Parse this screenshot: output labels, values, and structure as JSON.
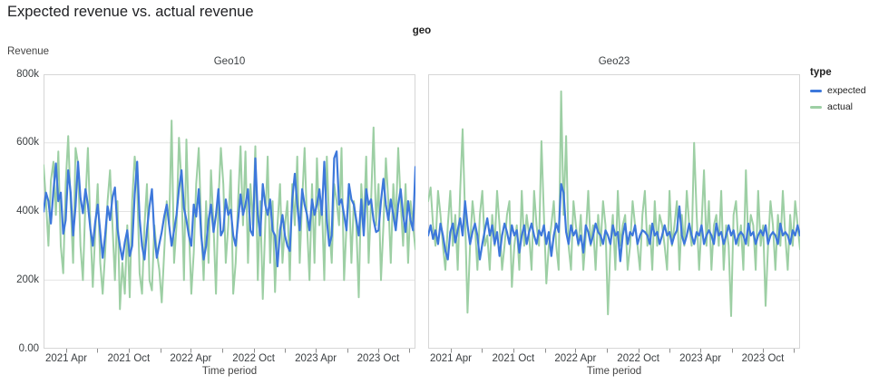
{
  "chart_data": {
    "type": "line",
    "title": "Expected revenue vs. actual revenue",
    "facet_field": "geo",
    "xlabel": "Time period",
    "ylabel": "Revenue",
    "values_unit": "thousands",
    "ylim": [
      0,
      800
    ],
    "grid": "horizontal",
    "legend_position": "right",
    "y_ticks": [
      {
        "value": 0,
        "label": "0.00"
      },
      {
        "value": 200,
        "label": "200k"
      },
      {
        "value": 400,
        "label": "400k"
      },
      {
        "value": 600,
        "label": "600k"
      },
      {
        "value": 800,
        "label": "800k"
      }
    ],
    "x_ticks": [
      {
        "pos": 0.061,
        "label": "2021 Apr"
      },
      {
        "pos": 0.145,
        "label": ""
      },
      {
        "pos": 0.229,
        "label": "2021 Oct"
      },
      {
        "pos": 0.314,
        "label": ""
      },
      {
        "pos": 0.396,
        "label": "2022 Apr"
      },
      {
        "pos": 0.481,
        "label": ""
      },
      {
        "pos": 0.565,
        "label": "2022 Oct"
      },
      {
        "pos": 0.649,
        "label": ""
      },
      {
        "pos": 0.732,
        "label": "2023 Apr"
      },
      {
        "pos": 0.816,
        "label": ""
      },
      {
        "pos": 0.9,
        "label": "2023 Oct"
      },
      {
        "pos": 0.984,
        "label": ""
      }
    ],
    "legend": {
      "title": "type",
      "items": [
        {
          "label": "expected",
          "color": "#3D78DB"
        },
        {
          "label": "actual",
          "color": "#9DCFA4"
        }
      ]
    },
    "facets": [
      {
        "name": "Geo10",
        "series": [
          {
            "name": "expected",
            "color": "#3D78DB",
            "width": 2.2,
            "values": [
              400,
              455,
              430,
              365,
              460,
              540,
              430,
              455,
              335,
              375,
              520,
              455,
              330,
              415,
              545,
              440,
              395,
              465,
              420,
              350,
              300,
              370,
              420,
              340,
              265,
              330,
              415,
              375,
              440,
              470,
              350,
              300,
              260,
              310,
              345,
              270,
              300,
              450,
              545,
              380,
              300,
              260,
              345,
              415,
              465,
              330,
              265,
              305,
              340,
              385,
              420,
              360,
              300,
              345,
              390,
              465,
              520,
              410,
              375,
              330,
              300,
              420,
              385,
              465,
              330,
              260,
              300,
              375,
              420,
              340,
              390,
              465,
              330,
              345,
              435,
              390,
              405,
              330,
              300,
              375,
              450,
              390,
              420,
              465,
              345,
              330,
              555,
              390,
              330,
              480,
              420,
              390,
              435,
              345,
              330,
              240,
              345,
              390,
              330,
              300,
              285,
              435,
              510,
              420,
              345,
              465,
              420,
              390,
              345,
              435,
              390,
              420,
              465,
              390,
              545,
              375,
              300,
              330,
              555,
              575,
              420,
              435,
              390,
              345,
              480,
              435,
              420,
              375,
              330,
              435,
              330,
              465,
              420,
              435,
              375,
              340,
              345,
              430,
              495,
              420,
              375,
              435,
              390,
              345,
              420,
              465,
              390,
              340,
              430,
              375,
              345,
              530
            ]
          },
          {
            "name": "actual",
            "color": "#9DCFA4",
            "width": 2,
            "values": [
              535,
              430,
              300,
              490,
              545,
              390,
              575,
              300,
              220,
              480,
              620,
              420,
              250,
              585,
              540,
              300,
              200,
              430,
              585,
              360,
              180,
              340,
              480,
              250,
              160,
              280,
              430,
              520,
              360,
              200,
              430,
              115,
              250,
              160,
              360,
              150,
              430,
              560,
              480,
              220,
              160,
              360,
              480,
              200,
              170,
              360,
              280,
              230,
              135,
              280,
              430,
              360,
              665,
              250,
              360,
              615,
              480,
              200,
              610,
              360,
              160,
              280,
              480,
              585,
              360,
              200,
              430,
              250,
              520,
              360,
              160,
              430,
              585,
              480,
              250,
              360,
              520,
              160,
              250,
              430,
              590,
              360,
              575,
              250,
              480,
              360,
              590,
              200,
              430,
              145,
              360,
              560,
              250,
              430,
              165,
              360,
              480,
              250,
              360,
              430,
              200,
              480,
              360,
              560,
              250,
              430,
              585,
              360,
              200,
              480,
              250,
              555,
              360,
              430,
              200,
              560,
              360,
              250,
              480,
              430,
              360,
              585,
              200,
              360,
              480,
              250,
              430,
              360,
              150,
              480,
              360,
              560,
              250,
              430,
              645,
              360,
              480,
              200,
              360,
              555,
              430,
              250,
              480,
              360,
              585,
              430,
              300,
              480,
              250,
              430,
              360,
              290
            ]
          }
        ]
      },
      {
        "name": "Geo23",
        "series": [
          {
            "name": "expected",
            "color": "#3D78DB",
            "width": 2.2,
            "values": [
              330,
              360,
              320,
              345,
              305,
              365,
              330,
              285,
              260,
              340,
              365,
              310,
              345,
              380,
              330,
              430,
              360,
              305,
              340,
              365,
              330,
              260,
              305,
              345,
              380,
              330,
              360,
              305,
              340,
              270,
              330,
              365,
              340,
              305,
              360,
              330,
              345,
              280,
              330,
              360,
              305,
              340,
              365,
              330,
              305,
              345,
              330,
              360,
              305,
              340,
              270,
              330,
              365,
              340,
              480,
              455,
              340,
              305,
              360,
              330,
              345,
              305,
              330,
              280,
              360,
              340,
              305,
              330,
              365,
              340,
              330,
              305,
              345,
              330,
              305,
              360,
              330,
              340,
              255,
              330,
              365,
              305,
              340,
              330,
              360,
              305,
              330,
              345,
              340,
              330,
              305,
              365,
              330,
              340,
              305,
              330,
              360,
              330,
              340,
              305,
              330,
              345,
              415,
              330,
              305,
              330,
              365,
              330,
              305,
              340,
              330,
              360,
              305,
              330,
              345,
              330,
              305,
              365,
              330,
              340,
              305,
              330,
              360,
              330,
              345,
              305,
              330,
              340,
              330,
              305,
              365,
              330,
              340,
              305,
              330,
              345,
              330,
              360,
              305,
              330,
              340,
              330,
              305,
              365,
              330,
              340,
              330,
              305,
              345,
              330,
              360,
              330
            ]
          },
          {
            "name": "actual",
            "color": "#9DCFA4",
            "width": 2,
            "values": [
              430,
              470,
              360,
              300,
              460,
              390,
              300,
              230,
              360,
              460,
              300,
              390,
              230,
              460,
              640,
              390,
              105,
              300,
              430,
              360,
              230,
              390,
              460,
              300,
              330,
              230,
              390,
              300,
              460,
              360,
              230,
              300,
              390,
              430,
              180,
              300,
              360,
              230,
              460,
              300,
              390,
              330,
              230,
              460,
              360,
              300,
              605,
              390,
              190,
              300,
              360,
              430,
              300,
              230,
              750,
              390,
              620,
              300,
              230,
              430,
              360,
              300,
              390,
              230,
              330,
              460,
              300,
              360,
              230,
              390,
              300,
              430,
              360,
              100,
              300,
              390,
              230,
              460,
              300,
              360,
              390,
              230,
              300,
              430,
              360,
              300,
              230,
              390,
              460,
              300,
              360,
              230,
              430,
              300,
              390,
              360,
              300,
              230,
              460,
              300,
              360,
              430,
              230,
              390,
              300,
              460,
              360,
              300,
              600,
              390,
              230,
              360,
              520,
              300,
              430,
              230,
              360,
              390,
              300,
              460,
              230,
              360,
              300,
              95,
              390,
              430,
              300,
              360,
              230,
              520,
              300,
              390,
              360,
              230,
              460,
              300,
              360,
              125,
              300,
              430,
              360,
              230,
              390,
              300,
              460,
              330,
              230,
              390,
              300,
              430,
              360,
              290
            ]
          }
        ]
      }
    ]
  }
}
